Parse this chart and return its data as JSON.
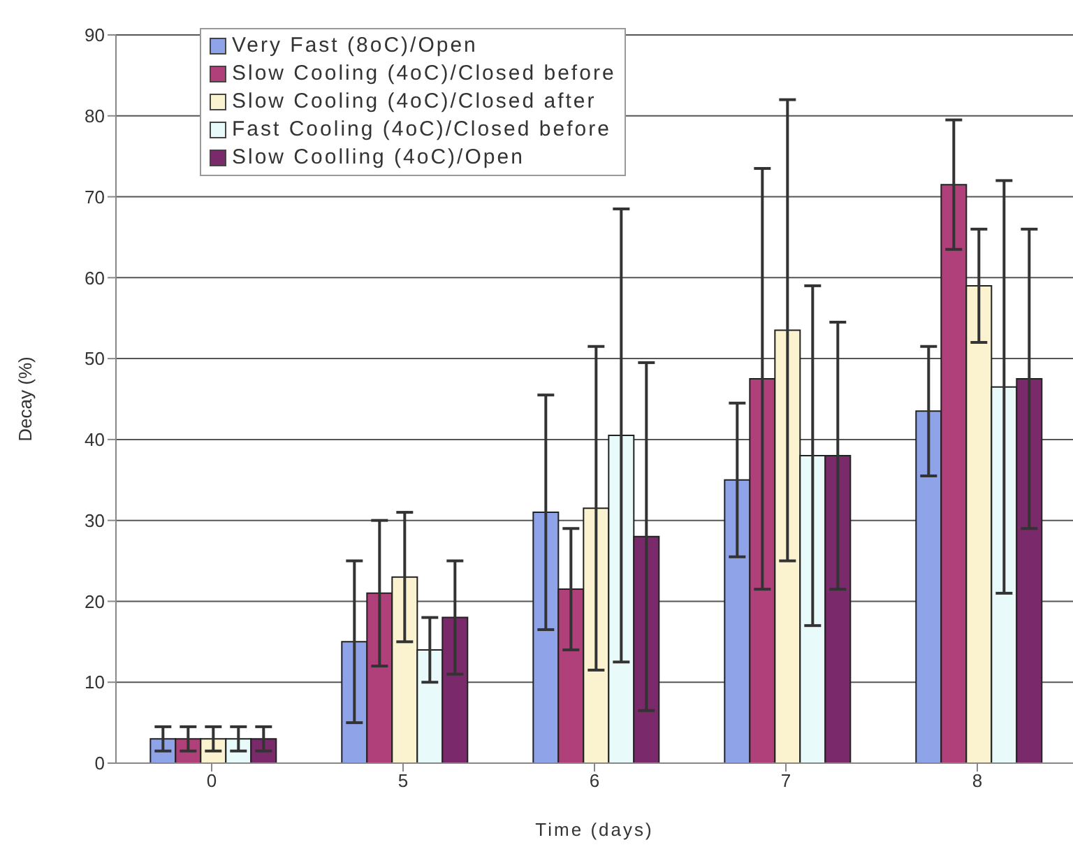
{
  "chart_data": {
    "type": "bar",
    "xlabel": "Time (days)",
    "ylabel": "Decay (%)",
    "categories": [
      "0",
      "5",
      "6",
      "7",
      "8"
    ],
    "series": [
      {
        "name": "Very Fast (8oC)/Open",
        "color": "#8fa4e8",
        "values": [
          3,
          15,
          31,
          35,
          43.5
        ],
        "errors": [
          1.5,
          10,
          14.5,
          9.5,
          8
        ]
      },
      {
        "name": "Slow Cooling (4oC)/Closed before",
        "color": "#b0407a",
        "values": [
          3,
          21,
          21.5,
          47.5,
          71.5
        ],
        "errors": [
          1.5,
          9,
          7.5,
          26,
          8
        ]
      },
      {
        "name": "Slow Cooling (4oC)/Closed after",
        "color": "#fbf3d0",
        "values": [
          3,
          23,
          31.5,
          53.5,
          59
        ],
        "errors": [
          1.5,
          8,
          20,
          28.5,
          7
        ]
      },
      {
        "name": "Fast Cooling (4oC)/Closed before",
        "color": "#e8fafa",
        "values": [
          3,
          14,
          40.5,
          38,
          46.5
        ],
        "errors": [
          1.5,
          4,
          28,
          21,
          25.5
        ]
      },
      {
        "name": "Slow Coolling (4oC)/Open",
        "color": "#7a2a6a",
        "values": [
          3,
          18,
          28,
          38,
          47.5
        ],
        "errors": [
          1.5,
          7,
          21.5,
          16.5,
          18.5
        ]
      }
    ],
    "ylim": [
      0,
      90
    ],
    "yticks": [
      0,
      10,
      20,
      30,
      40,
      50,
      60,
      70,
      80,
      90
    ],
    "grid": "y",
    "legend": "top left"
  }
}
